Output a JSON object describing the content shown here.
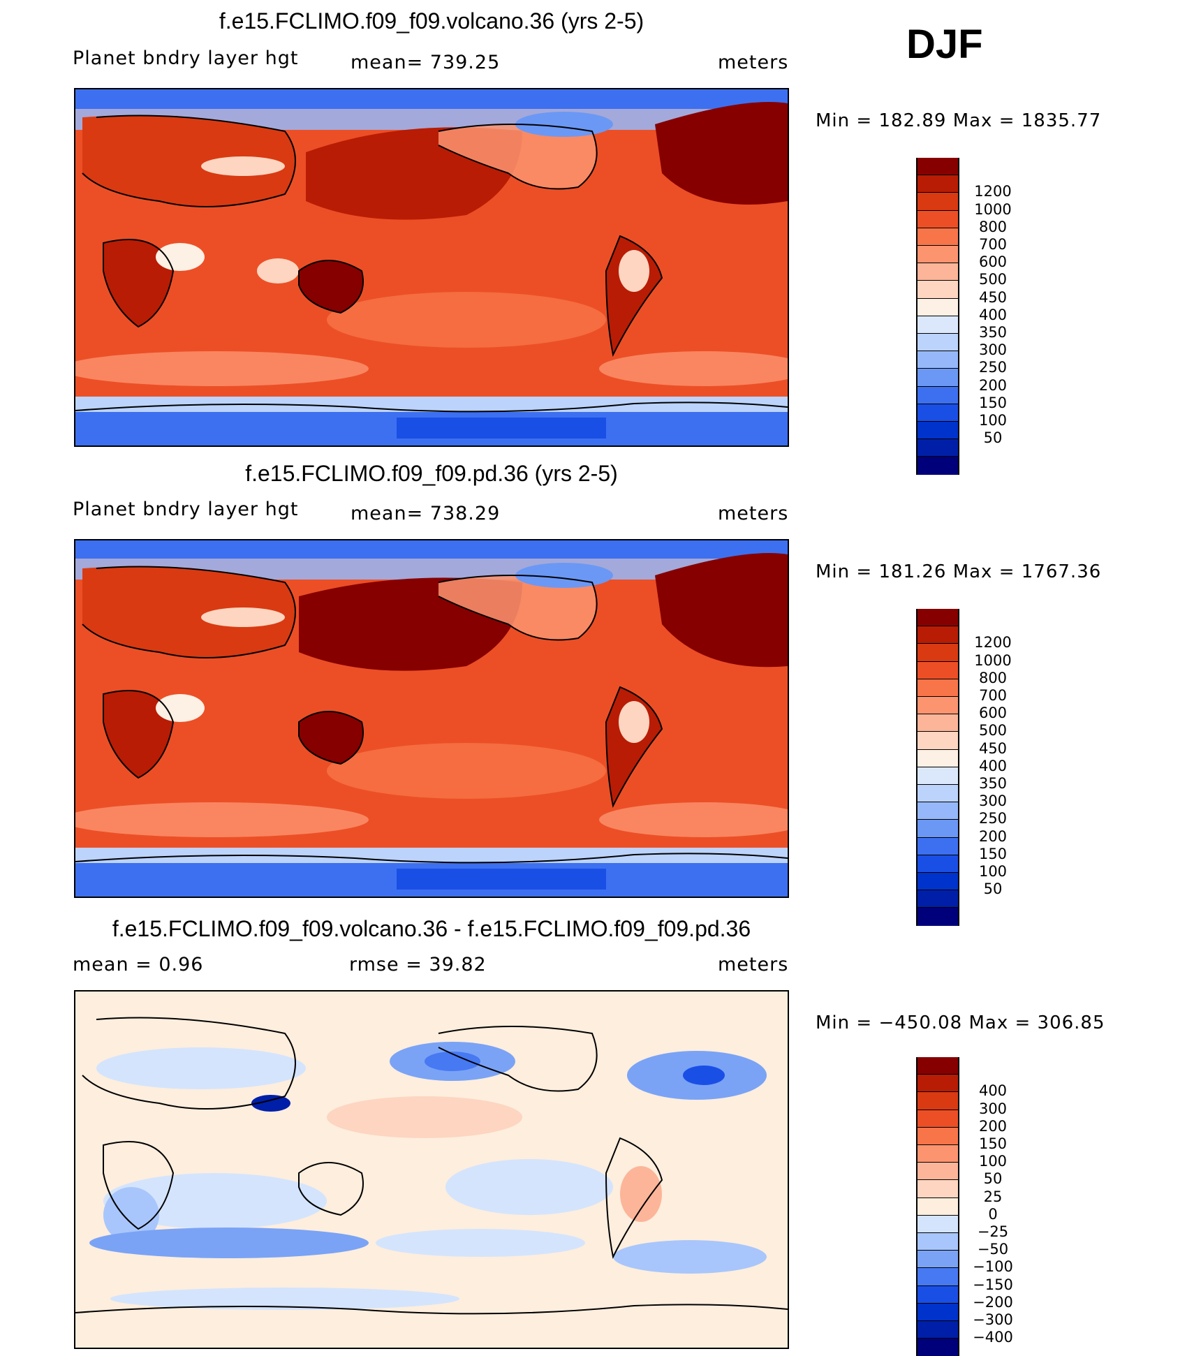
{
  "season": "DJF",
  "colors": {
    "abs_scale": [
      "#00007a",
      "#001fa8",
      "#0033cc",
      "#1a4fe6",
      "#3d70f0",
      "#6b98f5",
      "#96b8fa",
      "#bcd3fb",
      "#dbe8fc",
      "#fdf0e4",
      "#fdd5c0",
      "#fcb599",
      "#fc9470",
      "#f87449",
      "#ec4f26",
      "#d93a12",
      "#b81c04",
      "#860000"
    ],
    "diff_scale": [
      "#00007a",
      "#001fa8",
      "#0033cc",
      "#1a4fe6",
      "#4679f2",
      "#7aa3f6",
      "#a8c6fb",
      "#d4e4fd",
      "#fdeede",
      "#fdd5c0",
      "#fcb599",
      "#fc9470",
      "#f87449",
      "#ec4f26",
      "#d93a12",
      "#b81c04",
      "#860000"
    ]
  },
  "chart_data": [
    {
      "type": "heatmap",
      "title": "f.e15.FCLIMO.f09_f09.volcano.36 (yrs 2-5)",
      "variable": "Planet bndry layer hgt",
      "stat": "mean=  739.25",
      "units": "meters",
      "min_max": "Min  =  182.89  Max  =  1835.77",
      "levels": [
        "1200",
        "1000",
        "800",
        "700",
        "600",
        "500",
        "450",
        "400",
        "350",
        "300",
        "250",
        "200",
        "150",
        "100",
        "50"
      ],
      "palette": "abs_scale"
    },
    {
      "type": "heatmap",
      "title": "f.e15.FCLIMO.f09_f09.pd.36 (yrs 2-5)",
      "variable": "Planet bndry layer hgt",
      "stat": "mean=  738.29",
      "units": "meters",
      "min_max": "Min  =  181.26  Max  =  1767.36",
      "levels": [
        "1200",
        "1000",
        "800",
        "700",
        "600",
        "500",
        "450",
        "400",
        "350",
        "300",
        "250",
        "200",
        "150",
        "100",
        "50"
      ],
      "palette": "abs_scale"
    },
    {
      "type": "heatmap",
      "title": "f.e15.FCLIMO.f09_f09.volcano.36 - f.e15.FCLIMO.f09_f09.pd.36",
      "stat_left": "mean  =     0.96",
      "stat_mid": "rmse  =    39.82",
      "units": "meters",
      "min_max": "Min  =  −450.08  Max  =  306.85",
      "levels": [
        "400",
        "300",
        "200",
        "150",
        "100",
        "50",
        "25",
        "0",
        "−25",
        "−50",
        "−100",
        "−150",
        "−200",
        "−300",
        "−400"
      ],
      "palette": "diff_scale"
    }
  ]
}
